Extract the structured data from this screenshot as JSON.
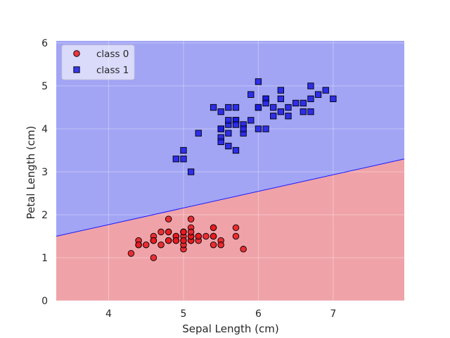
{
  "chart_data": {
    "type": "scatter",
    "xlabel": "Sepal Length (cm)",
    "ylabel": "Petal Length (cm)",
    "xlim": [
      3.3,
      7.95
    ],
    "ylim": [
      0,
      6.05
    ],
    "xticks": [
      4,
      5,
      6,
      7
    ],
    "yticks": [
      0,
      1,
      2,
      3,
      4,
      5,
      6
    ],
    "grid": true,
    "legend_position": "top-left",
    "decision_boundary": {
      "points": [
        [
          3.3,
          1.5
        ],
        [
          7.95,
          3.3
        ]
      ],
      "color": "#1a1aff",
      "region_above": {
        "label": "class 1",
        "color": "#a2a4f4"
      },
      "region_below": {
        "label": "class 0",
        "color": "#efa3a8"
      }
    },
    "series": [
      {
        "name": "class 0",
        "marker": "circle",
        "color": "#e8191f",
        "points": [
          [
            5.1,
            1.4
          ],
          [
            4.9,
            1.4
          ],
          [
            4.7,
            1.3
          ],
          [
            4.6,
            1.5
          ],
          [
            5.0,
            1.4
          ],
          [
            5.4,
            1.7
          ],
          [
            4.6,
            1.4
          ],
          [
            5.0,
            1.5
          ],
          [
            4.4,
            1.4
          ],
          [
            4.9,
            1.5
          ],
          [
            5.4,
            1.5
          ],
          [
            4.8,
            1.6
          ],
          [
            4.8,
            1.4
          ],
          [
            4.3,
            1.1
          ],
          [
            5.8,
            1.2
          ],
          [
            5.7,
            1.5
          ],
          [
            5.4,
            1.3
          ],
          [
            5.1,
            1.4
          ],
          [
            5.7,
            1.7
          ],
          [
            5.1,
            1.5
          ],
          [
            5.4,
            1.7
          ],
          [
            5.1,
            1.5
          ],
          [
            4.6,
            1.0
          ],
          [
            5.1,
            1.7
          ],
          [
            4.8,
            1.9
          ],
          [
            5.0,
            1.6
          ],
          [
            5.0,
            1.6
          ],
          [
            5.2,
            1.5
          ],
          [
            5.2,
            1.4
          ],
          [
            4.7,
            1.6
          ],
          [
            4.8,
            1.6
          ],
          [
            5.4,
            1.5
          ],
          [
            5.2,
            1.5
          ],
          [
            5.5,
            1.4
          ],
          [
            4.9,
            1.5
          ],
          [
            5.0,
            1.2
          ],
          [
            5.5,
            1.3
          ],
          [
            4.9,
            1.4
          ],
          [
            4.4,
            1.3
          ],
          [
            5.1,
            1.5
          ],
          [
            5.0,
            1.3
          ],
          [
            4.5,
            1.3
          ],
          [
            4.4,
            1.3
          ],
          [
            5.0,
            1.6
          ],
          [
            5.1,
            1.9
          ],
          [
            4.8,
            1.4
          ],
          [
            5.1,
            1.6
          ],
          [
            4.6,
            1.4
          ],
          [
            5.3,
            1.5
          ],
          [
            5.0,
            1.4
          ]
        ]
      },
      {
        "name": "class 1",
        "marker": "square",
        "color": "#1a1ae6",
        "points": [
          [
            7.0,
            4.7
          ],
          [
            6.4,
            4.5
          ],
          [
            6.9,
            4.9
          ],
          [
            5.5,
            4.0
          ],
          [
            6.5,
            4.6
          ],
          [
            5.7,
            4.5
          ],
          [
            6.3,
            4.7
          ],
          [
            4.9,
            3.3
          ],
          [
            6.6,
            4.6
          ],
          [
            5.2,
            3.9
          ],
          [
            5.0,
            3.5
          ],
          [
            5.9,
            4.2
          ],
          [
            6.0,
            4.0
          ],
          [
            6.1,
            4.7
          ],
          [
            5.6,
            3.6
          ],
          [
            6.7,
            4.4
          ],
          [
            5.6,
            4.5
          ],
          [
            5.8,
            4.1
          ],
          [
            6.2,
            4.5
          ],
          [
            5.6,
            3.9
          ],
          [
            5.9,
            4.8
          ],
          [
            6.1,
            4.0
          ],
          [
            6.3,
            4.9
          ],
          [
            6.1,
            4.7
          ],
          [
            6.4,
            4.3
          ],
          [
            6.6,
            4.4
          ],
          [
            6.8,
            4.8
          ],
          [
            6.7,
            5.0
          ],
          [
            6.0,
            4.5
          ],
          [
            5.7,
            3.5
          ],
          [
            5.5,
            3.8
          ],
          [
            5.5,
            3.7
          ],
          [
            5.8,
            3.9
          ],
          [
            6.0,
            5.1
          ],
          [
            5.4,
            4.5
          ],
          [
            6.0,
            4.5
          ],
          [
            6.7,
            4.7
          ],
          [
            6.3,
            4.4
          ],
          [
            5.6,
            4.1
          ],
          [
            5.5,
            4.0
          ],
          [
            5.5,
            4.4
          ],
          [
            6.1,
            4.6
          ],
          [
            5.8,
            4.0
          ],
          [
            5.0,
            3.3
          ],
          [
            5.6,
            4.2
          ],
          [
            5.7,
            4.2
          ],
          [
            5.7,
            4.2
          ],
          [
            6.2,
            4.3
          ],
          [
            5.1,
            3.0
          ],
          [
            5.7,
            4.1
          ]
        ]
      }
    ]
  }
}
